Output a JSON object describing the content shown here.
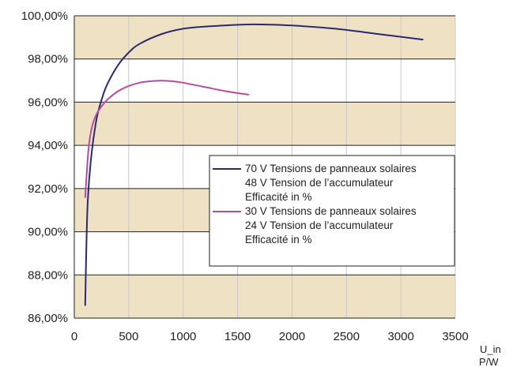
{
  "chart_data": {
    "type": "line",
    "x_axis": {
      "label_line1": "U_in",
      "label_line2": "P/W",
      "min": 0,
      "max": 3500,
      "ticks": [
        0,
        500,
        1000,
        1500,
        2000,
        2500,
        3000,
        3500
      ]
    },
    "y_axis": {
      "min": 86,
      "max": 100,
      "ticks": [
        86,
        88,
        90,
        92,
        94,
        96,
        98,
        100
      ],
      "tick_labels": [
        "86,00%",
        "88,00%",
        "90,00%",
        "92,00%",
        "94,00%",
        "96,00%",
        "98,00%",
        "100,00%"
      ]
    },
    "grid": true,
    "band_color": "#efe2c4",
    "legend_position": "right",
    "series": [
      {
        "name": "70 V Tensions de panneaux solaires",
        "legend_lines": [
          "70 V Tensions de panneaux solaires",
          "48 V Tension de l’accumulateur",
          "Efficacité in %"
        ],
        "color": "#2b2a6e",
        "x": [
          100,
          120,
          150,
          200,
          250,
          300,
          400,
          500,
          600,
          800,
          1000,
          1200,
          1600,
          2000,
          2400,
          2800,
          3200
        ],
        "y": [
          86.6,
          91.0,
          93.2,
          95.1,
          96.1,
          96.8,
          97.7,
          98.3,
          98.7,
          99.15,
          99.4,
          99.5,
          99.6,
          99.55,
          99.4,
          99.15,
          98.9
        ]
      },
      {
        "name": "30 V Tensions de panneaux solaires",
        "legend_lines": [
          "30 V Tensions de panneaux solaires",
          "24 V Tension de l’accumulateur",
          "Efficacité in %"
        ],
        "color": "#b54d9e",
        "x": [
          100,
          130,
          160,
          200,
          250,
          300,
          400,
          500,
          600,
          700,
          800,
          900,
          1000,
          1200,
          1400,
          1600
        ],
        "y": [
          91.6,
          93.8,
          94.8,
          95.4,
          95.8,
          96.1,
          96.5,
          96.75,
          96.9,
          96.97,
          97.0,
          96.97,
          96.9,
          96.7,
          96.5,
          96.35
        ]
      }
    ]
  }
}
